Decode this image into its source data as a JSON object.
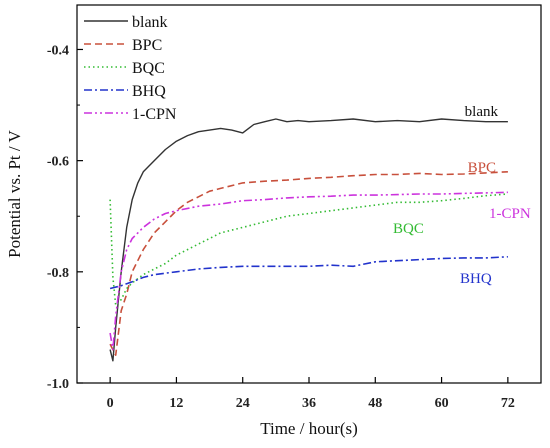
{
  "chart_data": {
    "type": "line",
    "xlabel": "Time / hour(s)",
    "ylabel": "Potential vs. Pt / V",
    "xlim": [
      -6,
      78
    ],
    "ylim": [
      -1.0,
      -0.32
    ],
    "xticks": [
      0,
      12,
      24,
      36,
      48,
      60,
      72
    ],
    "yticks": [
      -1.0,
      -0.8,
      -0.6,
      -0.4
    ],
    "ytick_labels": [
      "-1.0",
      "-0.8",
      "-0.6",
      "-0.4"
    ],
    "legend_position": "top-left",
    "grid": false,
    "series": [
      {
        "name": "blank",
        "color": "#333333",
        "dash": "solid",
        "x": [
          0,
          0.5,
          1,
          2,
          3,
          4,
          5,
          6,
          8,
          10,
          12,
          14,
          16,
          18,
          20,
          22,
          24,
          26,
          28,
          30,
          32,
          34,
          36,
          40,
          44,
          48,
          52,
          56,
          60,
          64,
          68,
          72
        ],
        "y": [
          -0.94,
          -0.96,
          -0.9,
          -0.8,
          -0.72,
          -0.67,
          -0.64,
          -0.62,
          -0.6,
          -0.58,
          -0.565,
          -0.555,
          -0.548,
          -0.545,
          -0.542,
          -0.545,
          -0.55,
          -0.535,
          -0.53,
          -0.525,
          -0.53,
          -0.528,
          -0.53,
          -0.528,
          -0.525,
          -0.53,
          -0.528,
          -0.53,
          -0.525,
          -0.528,
          -0.53,
          -0.53
        ],
        "annotation": "blank"
      },
      {
        "name": "BPC",
        "color": "#c8503c",
        "dash": "dashed",
        "x": [
          0,
          1,
          2,
          3,
          4,
          6,
          8,
          10,
          12,
          14,
          16,
          18,
          20,
          24,
          28,
          32,
          36,
          40,
          44,
          48,
          52,
          56,
          60,
          64,
          68,
          72
        ],
        "y": [
          -0.93,
          -0.95,
          -0.87,
          -0.84,
          -0.8,
          -0.76,
          -0.73,
          -0.71,
          -0.69,
          -0.675,
          -0.665,
          -0.655,
          -0.65,
          -0.64,
          -0.637,
          -0.635,
          -0.632,
          -0.63,
          -0.627,
          -0.625,
          -0.625,
          -0.623,
          -0.625,
          -0.624,
          -0.622,
          -0.62
        ],
        "annotation": "BPC"
      },
      {
        "name": "BQC",
        "color": "#33bb33",
        "dash": "dotted",
        "x": [
          0,
          0.5,
          1,
          2,
          3,
          4,
          6,
          8,
          10,
          12,
          14,
          16,
          18,
          20,
          24,
          28,
          32,
          36,
          40,
          44,
          48,
          52,
          56,
          60,
          64,
          68,
          72
        ],
        "y": [
          -0.67,
          -0.81,
          -0.86,
          -0.85,
          -0.83,
          -0.82,
          -0.805,
          -0.795,
          -0.785,
          -0.77,
          -0.76,
          -0.75,
          -0.74,
          -0.73,
          -0.72,
          -0.71,
          -0.7,
          -0.695,
          -0.69,
          -0.685,
          -0.68,
          -0.675,
          -0.675,
          -0.672,
          -0.668,
          -0.663,
          -0.66
        ],
        "annotation": "BQC"
      },
      {
        "name": "BHQ",
        "color": "#2233cc",
        "dash": "dashdot",
        "x": [
          0,
          2,
          4,
          6,
          8,
          12,
          16,
          20,
          24,
          28,
          32,
          36,
          40,
          44,
          48,
          52,
          56,
          60,
          64,
          68,
          72
        ],
        "y": [
          -0.83,
          -0.825,
          -0.818,
          -0.81,
          -0.805,
          -0.8,
          -0.795,
          -0.792,
          -0.79,
          -0.79,
          -0.79,
          -0.79,
          -0.788,
          -0.79,
          -0.782,
          -0.78,
          -0.778,
          -0.776,
          -0.775,
          -0.775,
          -0.773
        ],
        "annotation": "BHQ"
      },
      {
        "name": "1-CPN",
        "color": "#cc33dd",
        "dash": "dashdotdot",
        "x": [
          0,
          0.5,
          1,
          2,
          3,
          4,
          6,
          8,
          10,
          12,
          16,
          20,
          24,
          28,
          32,
          36,
          40,
          44,
          48,
          52,
          56,
          60,
          64,
          68,
          72
        ],
        "y": [
          -0.91,
          -0.94,
          -0.88,
          -0.8,
          -0.76,
          -0.74,
          -0.72,
          -0.705,
          -0.695,
          -0.69,
          -0.682,
          -0.678,
          -0.672,
          -0.67,
          -0.667,
          -0.665,
          -0.664,
          -0.662,
          -0.662,
          -0.661,
          -0.66,
          -0.66,
          -0.659,
          -0.658,
          -0.657
        ],
        "annotation": "1-CPN"
      }
    ]
  }
}
